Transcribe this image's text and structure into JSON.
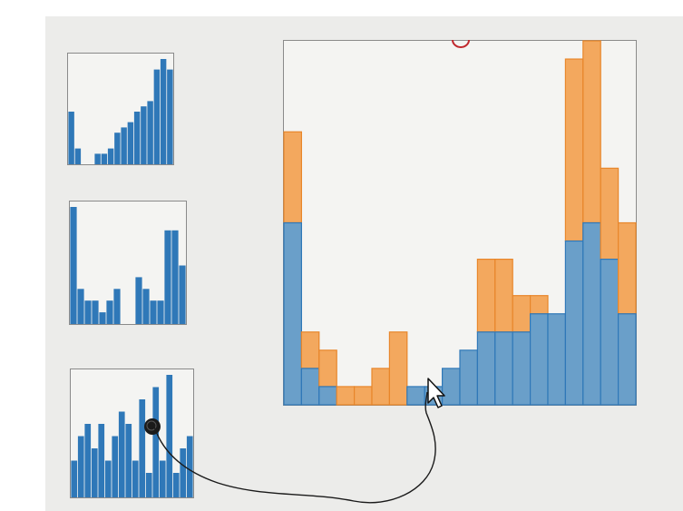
{
  "colors": {
    "background": "#ffffff",
    "canvas": "#ececea",
    "thumb_bar": "#2f78b8",
    "main_bottom": "#6a9fc9",
    "main_top": "#f3a85e",
    "main_bottom_stroke": "#2f78b8",
    "main_top_stroke": "#e8862a",
    "sketch_stroke": "#1a1a1a",
    "marker_red": "#c0282d"
  },
  "icons": {
    "cursor": "arrow-cursor-icon",
    "lasso": "sketch-lasso-icon"
  },
  "chart_data": [
    {
      "type": "bar",
      "id": "thumbnail-1",
      "values": [
        10,
        3,
        0,
        0,
        2,
        2,
        3,
        6,
        7,
        8,
        10,
        11,
        12,
        18,
        20,
        18
      ],
      "ylim": [
        0,
        20
      ],
      "grid": false,
      "legend": "none"
    },
    {
      "type": "bar",
      "id": "thumbnail-2",
      "values": [
        10,
        3,
        2,
        2,
        1,
        2,
        3,
        0,
        0,
        4,
        3,
        2,
        2,
        8,
        8,
        5
      ],
      "ylim": [
        0,
        10
      ],
      "grid": false,
      "legend": "none"
    },
    {
      "type": "bar",
      "id": "thumbnail-3",
      "values": [
        3,
        5,
        6,
        4,
        6,
        3,
        5,
        7,
        6,
        3,
        8,
        2,
        9,
        3,
        10,
        2,
        4,
        5
      ],
      "ylim": [
        0,
        10
      ],
      "grid": false,
      "legend": "none"
    },
    {
      "type": "bar",
      "id": "main-stacked-histogram",
      "stacked": true,
      "series": [
        {
          "values": [
            10,
            2,
            1,
            0,
            0,
            0,
            0,
            1,
            1,
            2,
            3,
            4,
            4,
            4,
            5,
            5,
            9,
            10,
            8,
            5
          ]
        },
        {
          "values": [
            5,
            2,
            2,
            1,
            1,
            2,
            4,
            0,
            0,
            0,
            0,
            4,
            4,
            2,
            1,
            0,
            10,
            10,
            5,
            5
          ]
        }
      ],
      "ylim": [
        0,
        20
      ],
      "grid": false,
      "legend": "none"
    }
  ]
}
